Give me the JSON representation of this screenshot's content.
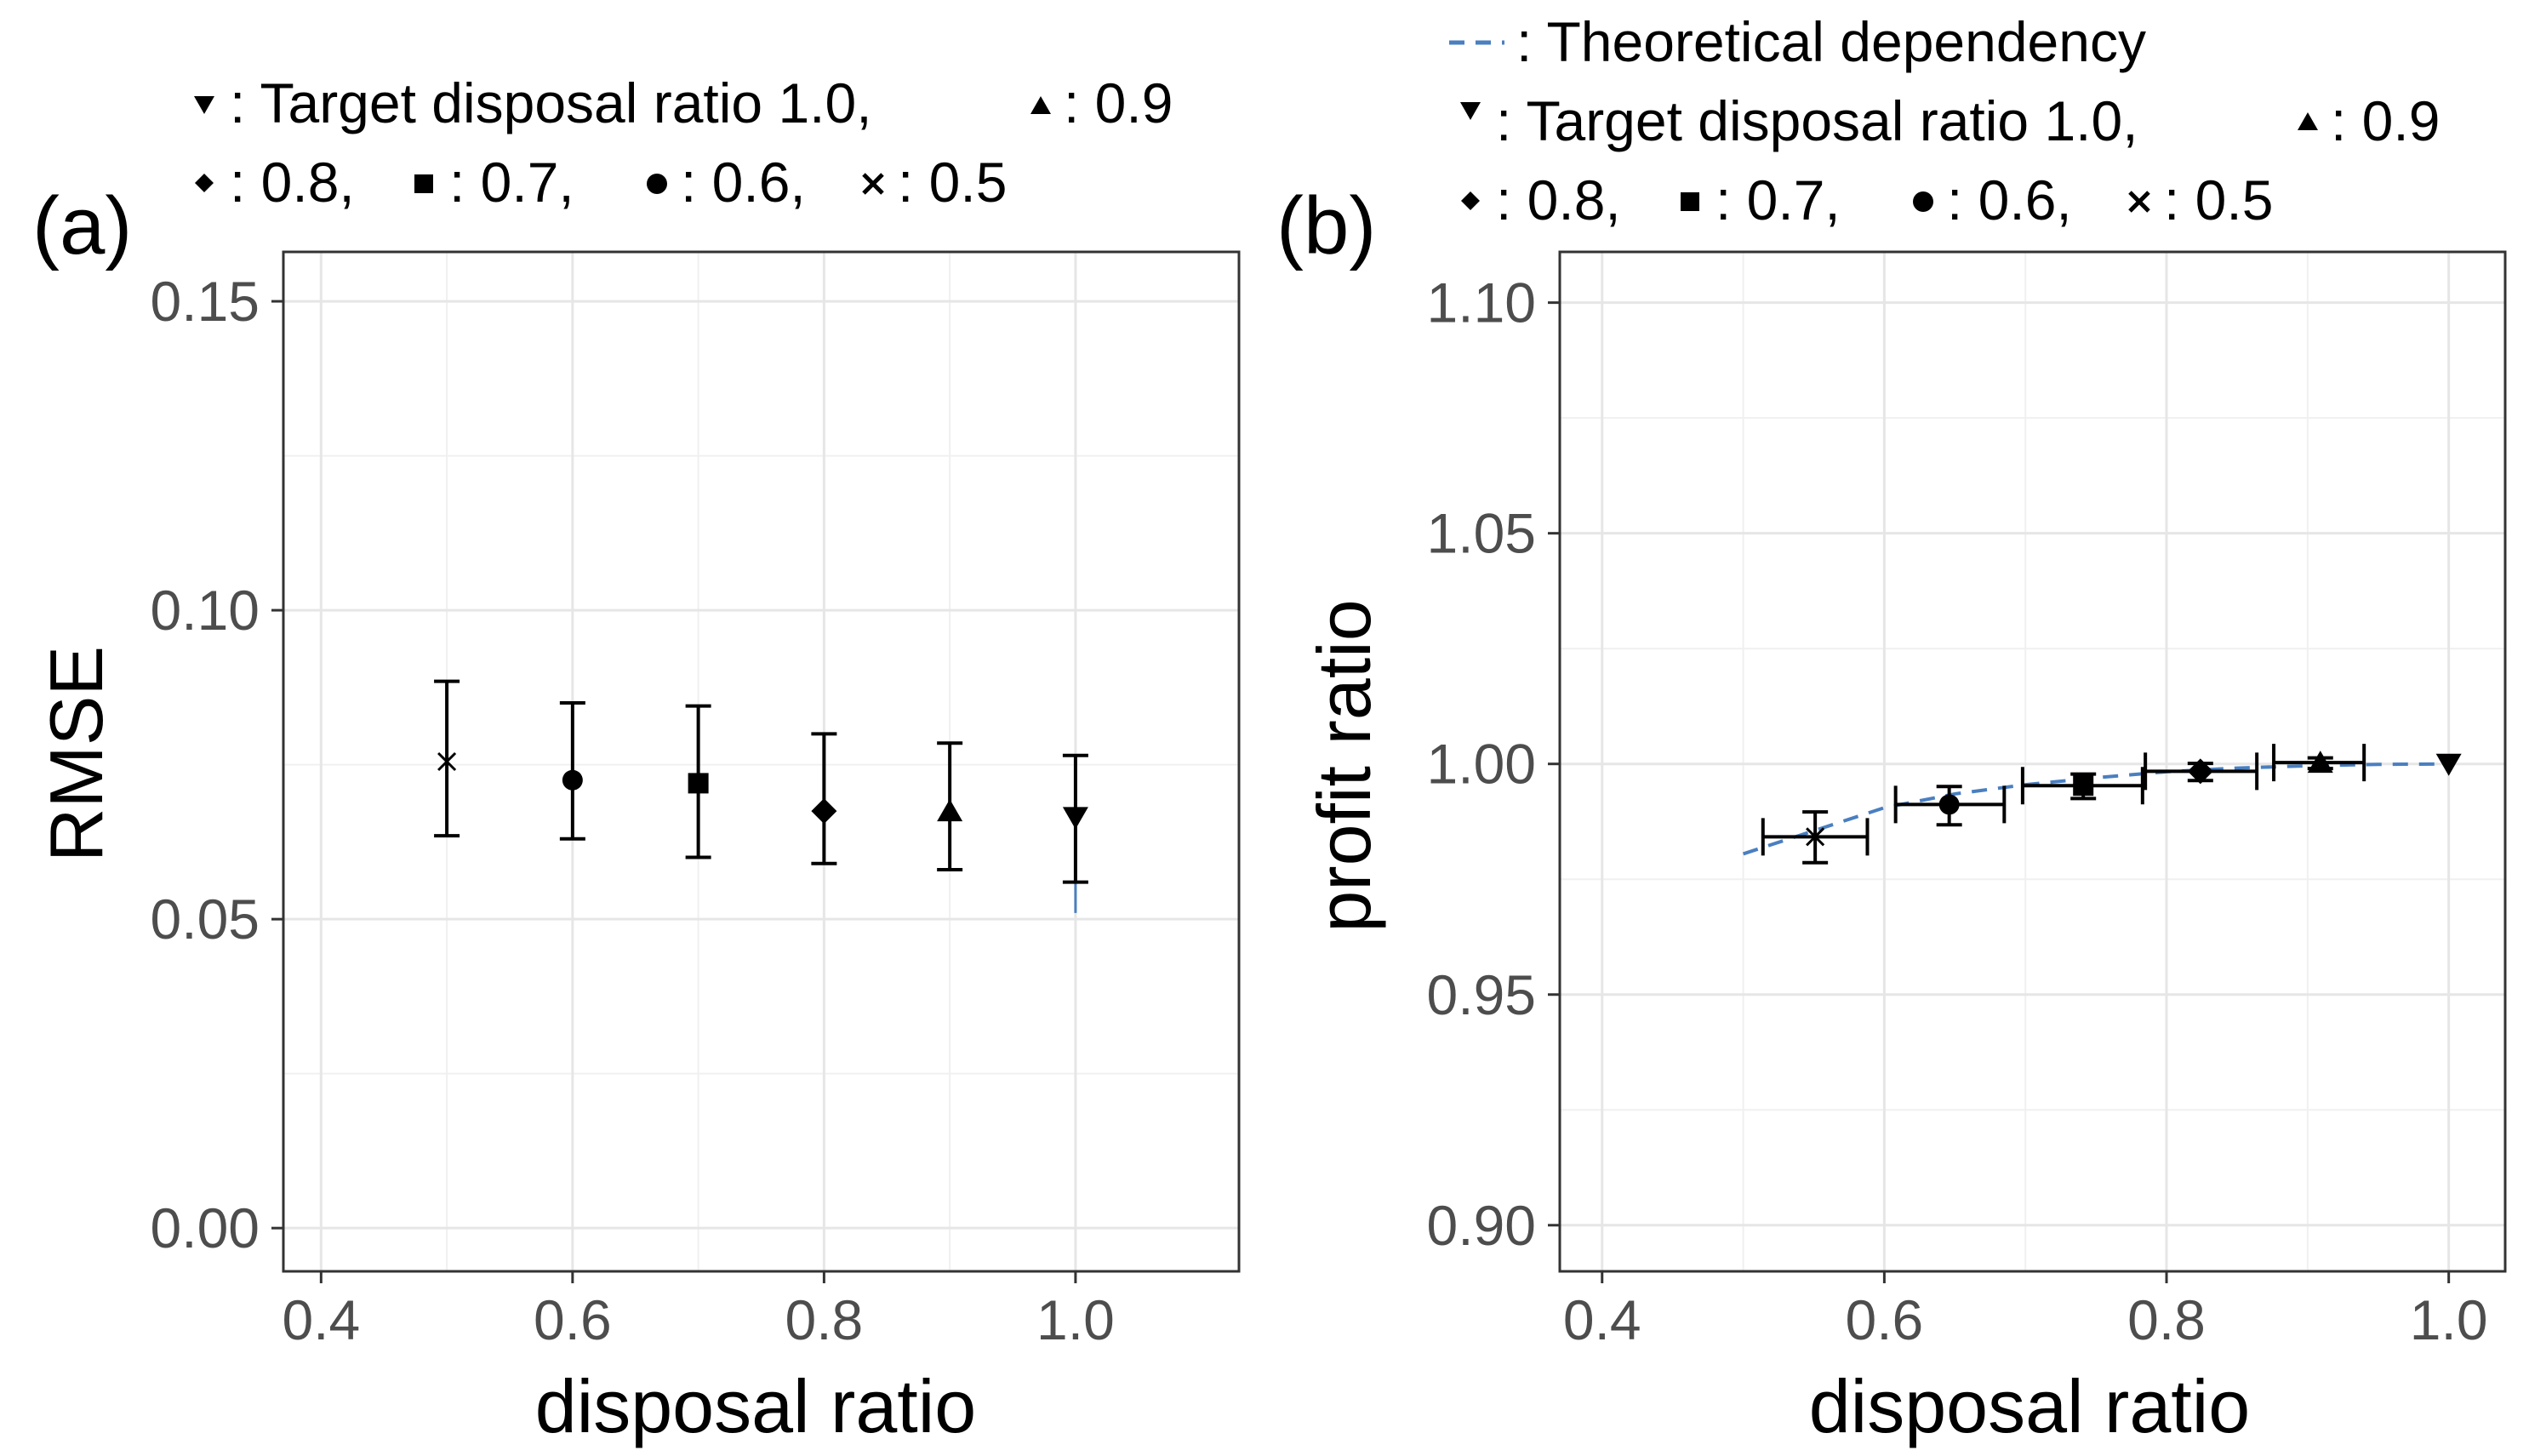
{
  "panels": [
    {
      "panel_label": "(a)",
      "legend": {
        "line1": ": Target disposal ratio 1.0,",
        "line1b": ": 0.9",
        "line2a": ": 0.8,",
        "line2b": ": 0.7,",
        "line2c": ": 0.6,",
        "line2d": ": 0.5"
      }
    },
    {
      "panel_label": "(b)",
      "legend": {
        "theory": ": Theoretical dependency",
        "line1": ": Target disposal ratio 1.0,",
        "line1b": ": 0.9",
        "line2a": ": 0.8,",
        "line2b": ": 0.7,",
        "line2c": ": 0.6,",
        "line2d": ": 0.5"
      }
    }
  ],
  "chart_data": [
    {
      "type": "scatter",
      "xlabel": "disposal ratio",
      "ylabel": "RMSE",
      "xlim": [
        0.37,
        1.13
      ],
      "ylim": [
        -0.007,
        0.158
      ],
      "x_ticks": [
        "0.4",
        "0.6",
        "0.8",
        "1.0"
      ],
      "x_tick_values": [
        0.4,
        0.6,
        0.8,
        1.0
      ],
      "y_ticks": [
        "0.00",
        "0.05",
        "0.10",
        "0.15"
      ],
      "y_tick_values": [
        0.0,
        0.05,
        0.1,
        0.15
      ],
      "grid": true,
      "legend_position": "top",
      "marker_color": "#000000",
      "theory_color": "#4a7fc0",
      "theory_segment": {
        "x": [
          1.0,
          1.0
        ],
        "y": [
          0.051,
          0.068
        ]
      },
      "series": [
        {
          "target": 0.5,
          "marker": "cross",
          "x": 0.5,
          "y": 0.0755,
          "y_low": 0.0635,
          "y_high": 0.0885
        },
        {
          "target": 0.6,
          "marker": "circle",
          "x": 0.6,
          "y": 0.0725,
          "y_low": 0.063,
          "y_high": 0.085
        },
        {
          "target": 0.7,
          "marker": "square",
          "x": 0.7,
          "y": 0.072,
          "y_low": 0.06,
          "y_high": 0.0845
        },
        {
          "target": 0.8,
          "marker": "diamond",
          "x": 0.8,
          "y": 0.0675,
          "y_low": 0.059,
          "y_high": 0.08
        },
        {
          "target": 0.9,
          "marker": "triangle-up",
          "x": 0.9,
          "y": 0.0675,
          "y_low": 0.058,
          "y_high": 0.0785
        },
        {
          "target": 1.0,
          "marker": "triangle-down",
          "x": 1.0,
          "y": 0.0665,
          "y_low": 0.056,
          "y_high": 0.0765
        }
      ]
    },
    {
      "type": "scatter",
      "xlabel": "disposal ratio",
      "ylabel": "profit ratio",
      "xlim": [
        0.37,
        1.04
      ],
      "ylim": [
        0.89,
        1.111
      ],
      "x_ticks": [
        "0.4",
        "0.6",
        "0.8",
        "1.0"
      ],
      "x_tick_values": [
        0.4,
        0.6,
        0.8,
        1.0
      ],
      "y_ticks": [
        "0.90",
        "0.95",
        "1.00",
        "1.05",
        "1.10"
      ],
      "y_tick_values": [
        0.9,
        0.95,
        1.0,
        1.05,
        1.1
      ],
      "grid": true,
      "legend_position": "top",
      "marker_color": "#000000",
      "theory_color": "#4a7fc0",
      "theory_curve": {
        "x": [
          0.5,
          0.55,
          0.6,
          0.65,
          0.7,
          0.75,
          0.8,
          0.85,
          0.9,
          0.95,
          1.0
        ],
        "y": [
          0.9805,
          0.9855,
          0.9905,
          0.9935,
          0.9955,
          0.997,
          0.9983,
          0.9991,
          0.9996,
          0.9999,
          1.0
        ]
      },
      "series": [
        {
          "target": 0.5,
          "marker": "cross",
          "x": 0.551,
          "y": 0.9842,
          "x_low": 0.514,
          "x_high": 0.588,
          "y_low": 0.9786,
          "y_high": 0.9896
        },
        {
          "target": 0.6,
          "marker": "circle",
          "x": 0.646,
          "y": 0.9912,
          "x_low": 0.608,
          "x_high": 0.685,
          "y_low": 0.9868,
          "y_high": 0.9951
        },
        {
          "target": 0.7,
          "marker": "square",
          "x": 0.741,
          "y": 0.9953,
          "x_low": 0.698,
          "x_high": 0.783,
          "y_low": 0.9925,
          "y_high": 0.9978
        },
        {
          "target": 0.8,
          "marker": "diamond",
          "x": 0.824,
          "y": 0.9984,
          "x_low": 0.785,
          "x_high": 0.864,
          "y_low": 0.9964,
          "y_high": 1.0001
        },
        {
          "target": 0.9,
          "marker": "triangle-up",
          "x": 0.909,
          "y": 1.0003,
          "x_low": 0.876,
          "x_high": 0.94,
          "y_low": 0.999,
          "y_high": 1.0013
        },
        {
          "target": 1.0,
          "marker": "triangle-down",
          "x": 1.0,
          "y": 1.0,
          "x_low": 1.0,
          "x_high": 1.0,
          "y_low": 1.0,
          "y_high": 1.0
        }
      ]
    }
  ]
}
